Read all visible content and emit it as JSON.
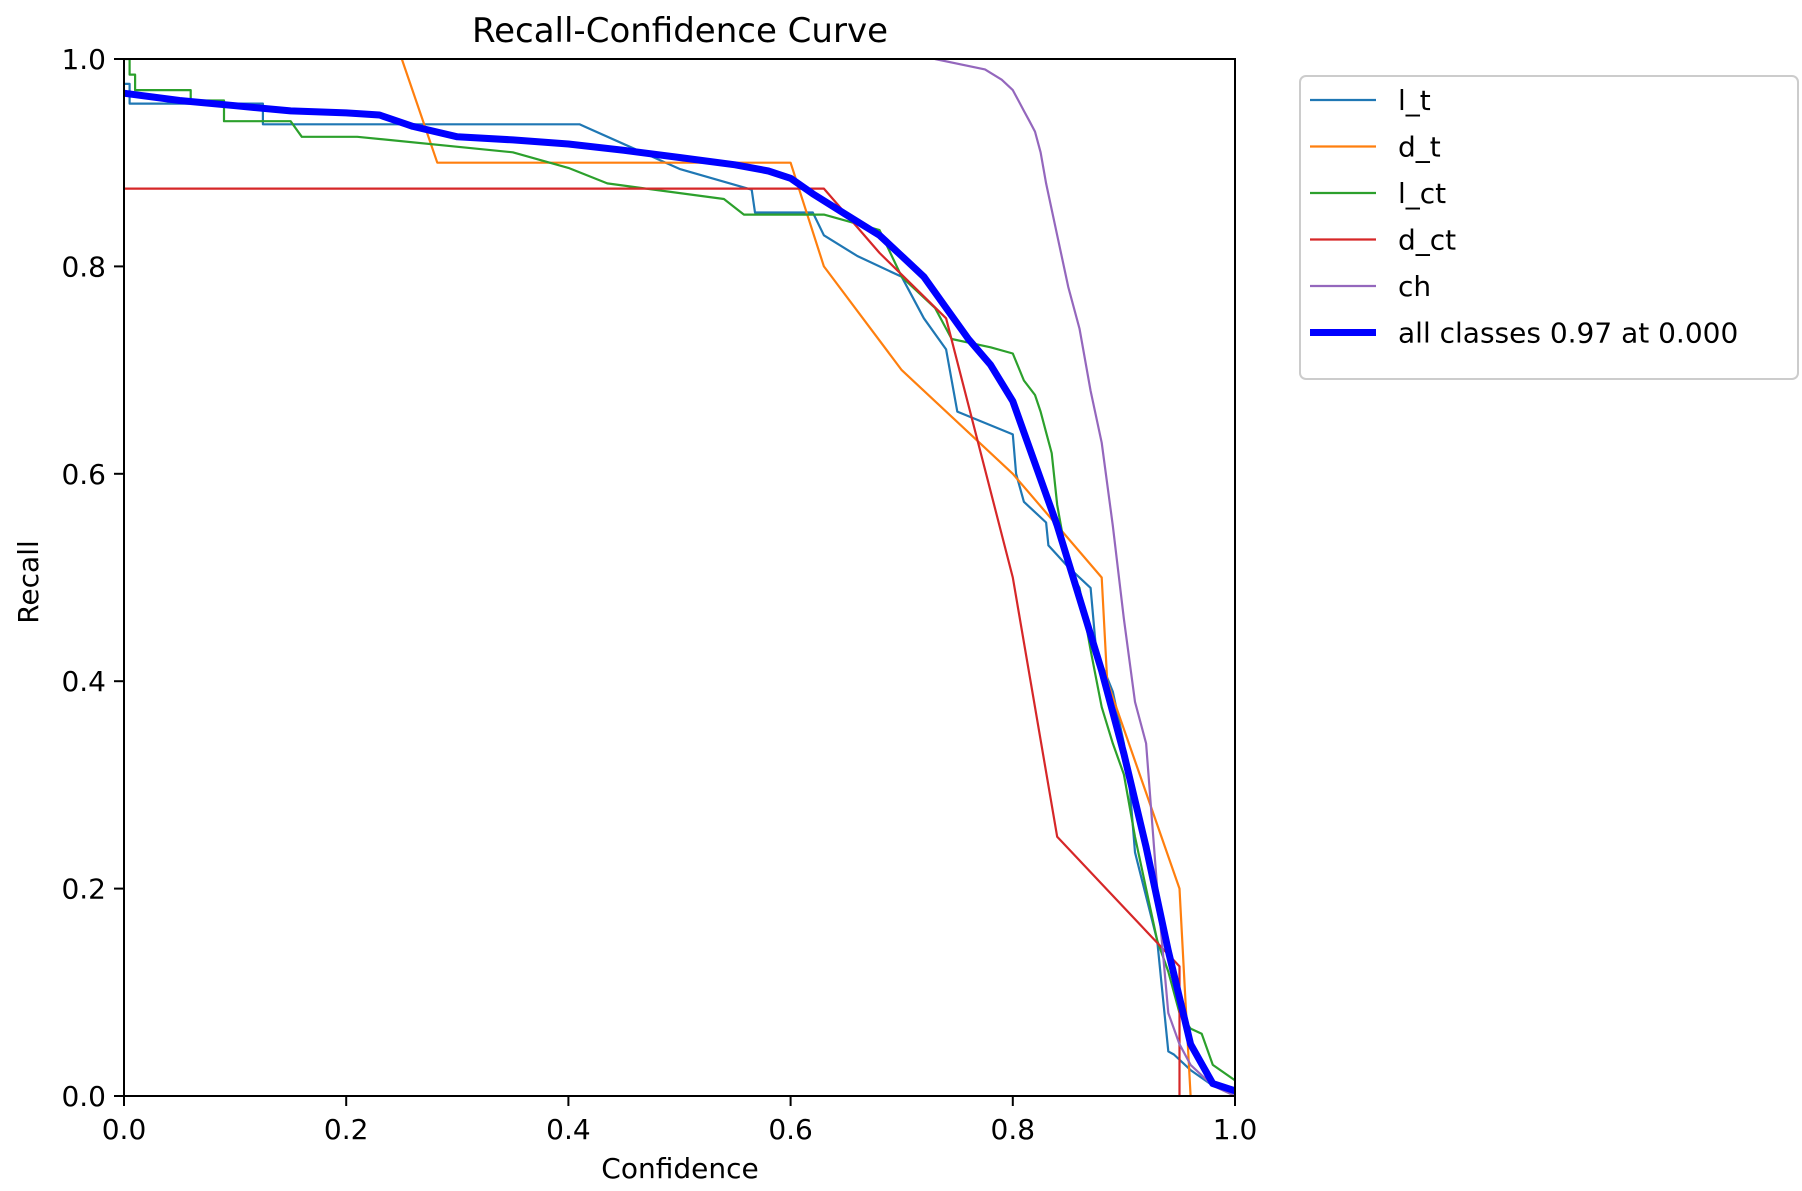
{
  "chart_data": {
    "type": "line",
    "title": "Recall-Confidence Curve",
    "xlabel": "Confidence",
    "ylabel": "Recall",
    "xlim": [
      0,
      1
    ],
    "ylim": [
      0,
      1
    ],
    "grid": false,
    "legend_position": "outside-top-right",
    "xticks": [
      {
        "value": 0.0,
        "label": "0.0"
      },
      {
        "value": 0.2,
        "label": "0.2"
      },
      {
        "value": 0.4,
        "label": "0.4"
      },
      {
        "value": 0.6,
        "label": "0.6"
      },
      {
        "value": 0.8,
        "label": "0.8"
      },
      {
        "value": 1.0,
        "label": "1.0"
      }
    ],
    "yticks": [
      {
        "value": 0.0,
        "label": "0.0"
      },
      {
        "value": 0.2,
        "label": "0.2"
      },
      {
        "value": 0.4,
        "label": "0.4"
      },
      {
        "value": 0.6,
        "label": "0.6"
      },
      {
        "value": 0.8,
        "label": "0.8"
      },
      {
        "value": 1.0,
        "label": "1.0"
      }
    ],
    "series": [
      {
        "name": "l_t",
        "color": "#1f77b4",
        "width": "thin",
        "x": [
          0.0,
          0.005,
          0.005,
          0.125,
          0.125,
          0.25,
          0.41,
          0.5,
          0.565,
          0.568,
          0.62,
          0.63,
          0.66,
          0.7,
          0.72,
          0.74,
          0.75,
          0.8,
          0.803,
          0.81,
          0.83,
          0.832,
          0.85,
          0.87,
          0.875,
          0.89,
          0.9,
          0.905,
          0.91,
          0.93,
          0.94,
          0.945,
          0.96,
          0.98,
          1.0
        ],
        "y": [
          0.976,
          0.976,
          0.957,
          0.957,
          0.937,
          0.937,
          0.937,
          0.894,
          0.874,
          0.852,
          0.852,
          0.83,
          0.81,
          0.79,
          0.75,
          0.72,
          0.66,
          0.638,
          0.6,
          0.573,
          0.553,
          0.531,
          0.51,
          0.49,
          0.43,
          0.39,
          0.34,
          0.3,
          0.235,
          0.15,
          0.043,
          0.04,
          0.025,
          0.01,
          0.005
        ]
      },
      {
        "name": "d_t",
        "color": "#ff7f0e",
        "width": "thin",
        "x": [
          0.25,
          0.282,
          0.6,
          0.63,
          0.7,
          0.8,
          0.88,
          0.885,
          0.95,
          0.955,
          0.96
        ],
        "y": [
          1.0,
          0.9,
          0.9,
          0.8,
          0.7,
          0.6,
          0.5,
          0.4,
          0.2,
          0.1,
          0.0
        ]
      },
      {
        "name": "l_ct",
        "color": "#2ca02c",
        "width": "thin",
        "x": [
          0.0,
          0.005,
          0.005,
          0.01,
          0.01,
          0.06,
          0.06,
          0.09,
          0.09,
          0.15,
          0.16,
          0.21,
          0.35,
          0.4,
          0.435,
          0.54,
          0.558,
          0.63,
          0.68,
          0.7,
          0.73,
          0.745,
          0.78,
          0.8,
          0.81,
          0.82,
          0.825,
          0.83,
          0.835,
          0.84,
          0.85,
          0.86,
          0.87,
          0.88,
          0.89,
          0.9,
          0.91,
          0.92,
          0.93,
          0.94,
          0.95,
          0.96,
          0.97,
          0.98,
          1.0
        ],
        "y": [
          1.0,
          1.0,
          0.985,
          0.985,
          0.97,
          0.97,
          0.96,
          0.96,
          0.94,
          0.94,
          0.925,
          0.925,
          0.91,
          0.895,
          0.88,
          0.865,
          0.85,
          0.85,
          0.835,
          0.79,
          0.76,
          0.73,
          0.722,
          0.716,
          0.69,
          0.676,
          0.66,
          0.64,
          0.62,
          0.57,
          0.51,
          0.49,
          0.43,
          0.375,
          0.34,
          0.31,
          0.25,
          0.2,
          0.15,
          0.12,
          0.08,
          0.065,
          0.06,
          0.03,
          0.015
        ]
      },
      {
        "name": "d_ct",
        "color": "#d62728",
        "width": "thin",
        "x": [
          0.0,
          0.63,
          0.68,
          0.74,
          0.8,
          0.84,
          0.95,
          0.95
        ],
        "y": [
          0.875,
          0.875,
          0.813,
          0.75,
          0.5,
          0.25,
          0.125,
          0.0
        ]
      },
      {
        "name": "ch",
        "color": "#9467bd",
        "width": "thin",
        "x": [
          0.73,
          0.775,
          0.79,
          0.8,
          0.805,
          0.81,
          0.815,
          0.82,
          0.825,
          0.83,
          0.84,
          0.85,
          0.86,
          0.87,
          0.88,
          0.89,
          0.9,
          0.91,
          0.92,
          0.93,
          0.94,
          0.95,
          0.96,
          0.97,
          0.98,
          1.0
        ],
        "y": [
          1.0,
          0.99,
          0.98,
          0.97,
          0.96,
          0.95,
          0.94,
          0.93,
          0.91,
          0.88,
          0.83,
          0.78,
          0.74,
          0.68,
          0.63,
          0.55,
          0.46,
          0.38,
          0.34,
          0.2,
          0.08,
          0.05,
          0.03,
          0.02,
          0.01,
          0.0
        ]
      },
      {
        "name": "all classes 0.97 at 0.000",
        "color": "#0000ff",
        "width": "thick",
        "x": [
          0.0,
          0.05,
          0.1,
          0.15,
          0.2,
          0.23,
          0.26,
          0.3,
          0.35,
          0.4,
          0.45,
          0.5,
          0.55,
          0.58,
          0.6,
          0.62,
          0.65,
          0.68,
          0.7,
          0.72,
          0.74,
          0.76,
          0.78,
          0.8,
          0.82,
          0.84,
          0.86,
          0.88,
          0.9,
          0.92,
          0.94,
          0.96,
          0.98,
          1.0
        ],
        "y": [
          0.967,
          0.96,
          0.955,
          0.95,
          0.948,
          0.946,
          0.935,
          0.925,
          0.922,
          0.918,
          0.912,
          0.905,
          0.898,
          0.892,
          0.885,
          0.87,
          0.85,
          0.83,
          0.81,
          0.79,
          0.76,
          0.73,
          0.705,
          0.67,
          0.61,
          0.55,
          0.48,
          0.41,
          0.33,
          0.24,
          0.14,
          0.05,
          0.012,
          0.005
        ]
      }
    ]
  }
}
